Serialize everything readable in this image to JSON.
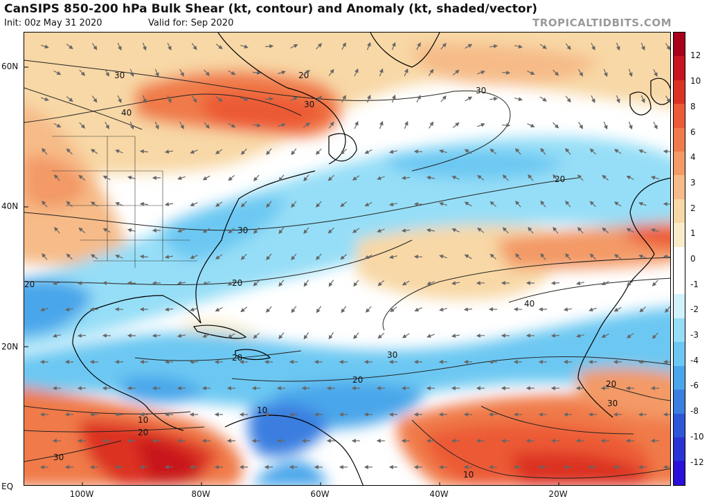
{
  "header": {
    "title": "CanSIPS 850-200 hPa Bulk Shear (kt, contour) and Anomaly (kt, shaded/vector)",
    "init": "Init: 00z May 31 2020",
    "valid": "Valid for: Sep 2020",
    "brand": "TROPICALTIDBITS.COM"
  },
  "map": {
    "lat_labels": [
      "60N",
      "40N",
      "20N",
      "EQ"
    ],
    "lon_labels": [
      "100W",
      "80W",
      "60W",
      "40W",
      "20W"
    ],
    "contour_labels": [
      "30",
      "40",
      "20",
      "30",
      "30",
      "20",
      "30",
      "20",
      "20",
      "40",
      "20",
      "30",
      "20",
      "10",
      "10",
      "20",
      "30",
      "10",
      "20",
      "30"
    ],
    "land_color": "#000000",
    "vector_color": "#666666"
  },
  "colorbar": {
    "labels": [
      "12",
      "10",
      "8",
      "6",
      "4",
      "3",
      "2",
      "1",
      "0",
      "-1",
      "-2",
      "-3",
      "-4",
      "-6",
      "-8",
      "-10",
      "-12"
    ],
    "colors": [
      "#a8001a",
      "#c8141e",
      "#dc3224",
      "#ec5a36",
      "#f07a4a",
      "#f39a66",
      "#f6bb88",
      "#f8d8a6",
      "#faecc8",
      "#ffffff",
      "#ffffff",
      "#d2f2fb",
      "#96def7",
      "#6cc8f2",
      "#4aa6ea",
      "#3a7ee0",
      "#2e56d8",
      "#2a34d4",
      "#2a10d8"
    ]
  }
}
